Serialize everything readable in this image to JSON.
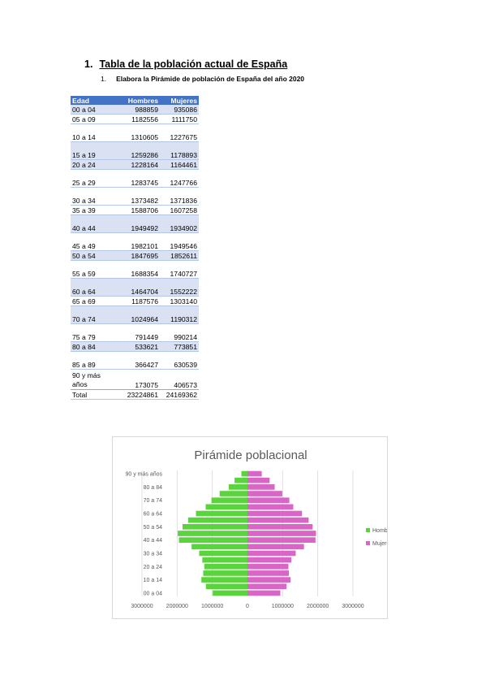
{
  "heading": {
    "number": "1.",
    "text": "Tabla de la población actual de España"
  },
  "subheading": {
    "number": "1.",
    "text": "Elabora la Pirámide de población de España del año 2020"
  },
  "table": {
    "headers": [
      "Edad",
      "Hombres",
      "Mujeres"
    ],
    "rows": [
      {
        "edad": "00 a 04",
        "hombres": "988859",
        "mujeres": "935086"
      },
      {
        "edad": "05 a 09",
        "hombres": "1182556",
        "mujeres": "1111750"
      },
      {
        "edad": "10 a 14",
        "hombres": "1310605",
        "mujeres": "1227675"
      },
      {
        "edad": "15 a 19",
        "hombres": "1259286",
        "mujeres": "1178893"
      },
      {
        "edad": "20 a 24",
        "hombres": "1228164",
        "mujeres": "1164461"
      },
      {
        "edad": "25 a 29",
        "hombres": "1283745",
        "mujeres": "1247766"
      },
      {
        "edad": "30 a 34",
        "hombres": "1373482",
        "mujeres": "1371836"
      },
      {
        "edad": "35 a 39",
        "hombres": "1588706",
        "mujeres": "1607258"
      },
      {
        "edad": "40 a 44",
        "hombres": "1949492",
        "mujeres": "1934902"
      },
      {
        "edad": "45 a 49",
        "hombres": "1982101",
        "mujeres": "1949546"
      },
      {
        "edad": "50 a 54",
        "hombres": "1847695",
        "mujeres": "1852611"
      },
      {
        "edad": "55 a 59",
        "hombres": "1688354",
        "mujeres": "1740727"
      },
      {
        "edad": "60 a 64",
        "hombres": "1464704",
        "mujeres": "1552222"
      },
      {
        "edad": "65 a 69",
        "hombres": "1187576",
        "mujeres": "1303140"
      },
      {
        "edad": "70 a 74",
        "hombres": "1024964",
        "mujeres": "1190312"
      },
      {
        "edad": "75 a 79",
        "hombres": "791449",
        "mujeres": "990214"
      },
      {
        "edad": "80 a 84",
        "hombres": "533621",
        "mujeres": "773851"
      },
      {
        "edad": "85 a 89",
        "hombres": "366427",
        "mujeres": "630539"
      },
      {
        "edad": "90 y más años",
        "hombres": "173075",
        "mujeres": "406573"
      }
    ],
    "total": {
      "label": "Total",
      "hombres": "23224861",
      "mujeres": "24169362"
    }
  },
  "chart_data": {
    "type": "bar",
    "orientation": "horizontal",
    "title": "Pirámide poblacional",
    "categories": [
      "00 a 04",
      "05 a 09",
      "10 a 14",
      "15 a 19",
      "20 a 24",
      "25 a 29",
      "30 a 34",
      "35 a 39",
      "40 a 44",
      "45 a 49",
      "50 a 54",
      "55 a 59",
      "60 a 64",
      "65 a 69",
      "70 a 74",
      "75 a 79",
      "80 a 84",
      "85 a 89",
      "90 y más años"
    ],
    "category_labels_shown": [
      "00 a 04",
      "10 a 14",
      "20 a 24",
      "30 a 34",
      "40 a 44",
      "50 a 54",
      "60 a 64",
      "70 a 74",
      "80 a 84",
      "90 y más años"
    ],
    "series": [
      {
        "name": "Hombres",
        "color": "#5ad43c",
        "side": "left",
        "values": [
          988859,
          1182556,
          1310605,
          1259286,
          1228164,
          1283745,
          1373482,
          1588706,
          1949492,
          1982101,
          1847695,
          1688354,
          1464704,
          1187576,
          1024964,
          791449,
          533621,
          366427,
          173075
        ]
      },
      {
        "name": "Mujeres",
        "color": "#d965c6",
        "side": "right",
        "values": [
          935086,
          1111750,
          1227675,
          1178893,
          1164461,
          1247766,
          1371836,
          1607258,
          1934902,
          1949546,
          1852611,
          1740727,
          1552222,
          1303140,
          1190312,
          990214,
          773851,
          630539,
          406573
        ]
      }
    ],
    "xlim": [
      -3000000,
      3000000
    ],
    "x_ticks": [
      {
        "value": -3000000,
        "label": "3000000"
      },
      {
        "value": -2000000,
        "label": "2000000"
      },
      {
        "value": -1000000,
        "label": "1000000"
      },
      {
        "value": 0,
        "label": "0"
      },
      {
        "value": 1000000,
        "label": "1000000"
      },
      {
        "value": 2000000,
        "label": "2000000"
      },
      {
        "value": 3000000,
        "label": "3000000"
      }
    ],
    "grid": true,
    "legend": "right",
    "gridline_color": "#d9d9d9"
  }
}
